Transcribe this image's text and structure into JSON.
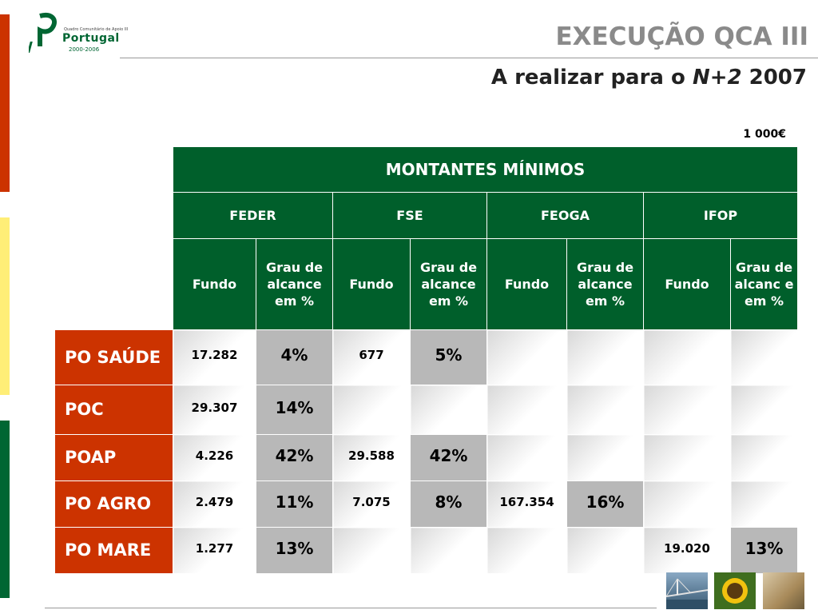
{
  "header": {
    "title": "EXECUÇÃO QCA III",
    "subtitle_prefix": "A realizar para o ",
    "subtitle_italic": "N+2",
    "subtitle_suffix": " 2007",
    "unit": "1 000€"
  },
  "logo": {
    "small_text": "Quadro Comunitário de Apoio III",
    "word": "Portugal",
    "years": "2000-2006"
  },
  "table": {
    "title": "MONTANTES MÍNIMOS",
    "funds": [
      "FEDER",
      "FSE",
      "FEOGA",
      "IFOP"
    ],
    "sub_headers": {
      "fundo": "Fundo",
      "grau": "Grau de alcance em %",
      "grau_ifop": "Grau de alcanc e em %"
    },
    "rows": [
      {
        "label": "PO SAÚDE",
        "cells": [
          "17.282",
          "4%",
          "677",
          "5%",
          "",
          "",
          "",
          ""
        ]
      },
      {
        "label": "POC",
        "cells": [
          "29.307",
          "14%",
          "",
          "",
          "",
          "",
          "",
          ""
        ]
      },
      {
        "label": "POAP",
        "cells": [
          "4.226",
          "42%",
          "29.588",
          "42%",
          "",
          "",
          "",
          ""
        ]
      },
      {
        "label": "PO AGRO",
        "cells": [
          "2.479",
          "11%",
          "7.075",
          "8%",
          "167.354",
          "16%",
          "",
          ""
        ]
      },
      {
        "label": "PO MARE",
        "cells": [
          "1.277",
          "13%",
          "",
          "",
          "",
          "",
          "19.020",
          "13%"
        ]
      }
    ]
  },
  "colors": {
    "header_green": "#005f2b",
    "row_red": "#cc3300",
    "percent_grey": "#b8b8b8",
    "bar_yellow": "#ffee77",
    "bar_green": "#006633"
  },
  "footer": {
    "photos": [
      "bridge-photo",
      "sunflower-photo",
      "workshop-photo"
    ]
  }
}
